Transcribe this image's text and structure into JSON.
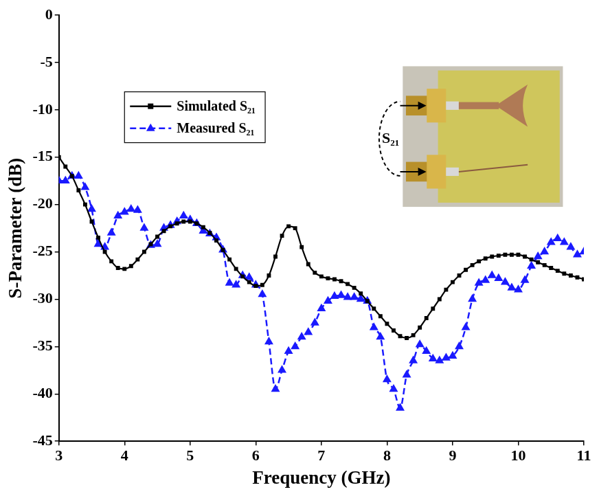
{
  "chart_data": {
    "type": "line",
    "x_label": "Frequency (GHz)",
    "y_label": "S-Parameter (dB)",
    "xlim": [
      3,
      11
    ],
    "xticks": [
      3,
      4,
      5,
      6,
      7,
      8,
      9,
      10,
      11
    ],
    "ylim": [
      -45,
      0
    ],
    "yticks": [
      -45,
      -40,
      -35,
      -30,
      -25,
      -20,
      -15,
      -10,
      -5,
      0
    ],
    "grid": false,
    "legend": "upper left",
    "annotations": [
      {
        "text": "S₂₁"
      }
    ],
    "x": [
      3.0,
      3.1,
      3.2,
      3.3,
      3.4,
      3.5,
      3.6,
      3.7,
      3.8,
      3.9,
      4.0,
      4.1,
      4.2,
      4.3,
      4.4,
      4.5,
      4.6,
      4.7,
      4.8,
      4.9,
      5.0,
      5.1,
      5.2,
      5.3,
      5.4,
      5.5,
      5.6,
      5.7,
      5.8,
      5.9,
      6.0,
      6.1,
      6.2,
      6.3,
      6.4,
      6.5,
      6.6,
      6.7,
      6.8,
      6.9,
      7.0,
      7.1,
      7.2,
      7.3,
      7.4,
      7.5,
      7.6,
      7.7,
      7.8,
      7.9,
      8.0,
      8.1,
      8.2,
      8.3,
      8.4,
      8.5,
      8.6,
      8.7,
      8.8,
      8.9,
      9.0,
      9.1,
      9.2,
      9.3,
      9.4,
      9.5,
      9.6,
      9.7,
      9.8,
      9.9,
      10.0,
      10.1,
      10.2,
      10.3,
      10.4,
      10.5,
      10.6,
      10.7,
      10.8,
      10.9,
      11.0
    ],
    "series": [
      {
        "name": "Simulated S₂₁",
        "color": "#000000",
        "marker": "square",
        "line_style": "solid",
        "values": [
          -15,
          -16,
          -17,
          -18.5,
          -20,
          -21.8,
          -23.5,
          -25,
          -26,
          -26.7,
          -26.8,
          -26.5,
          -25.8,
          -25,
          -24.2,
          -23.4,
          -22.8,
          -22.3,
          -22,
          -21.8,
          -21.8,
          -22,
          -22.4,
          -23,
          -23.8,
          -24.8,
          -25.8,
          -26.8,
          -27.6,
          -28.2,
          -28.6,
          -28.5,
          -27.5,
          -25.5,
          -23.3,
          -22.3,
          -22.5,
          -24.5,
          -26.3,
          -27.2,
          -27.6,
          -27.8,
          -27.9,
          -28.1,
          -28.4,
          -28.8,
          -29.4,
          -30.2,
          -31,
          -31.8,
          -32.6,
          -33.3,
          -33.9,
          -34.1,
          -33.8,
          -33,
          -32,
          -31,
          -30,
          -29,
          -28.2,
          -27.5,
          -26.9,
          -26.4,
          -26,
          -25.7,
          -25.5,
          -25.4,
          -25.3,
          -25.3,
          -25.3,
          -25.5,
          -25.8,
          -26.1,
          -26.4,
          -26.7,
          -27,
          -27.3,
          -27.5,
          -27.7,
          -27.9
        ]
      },
      {
        "name": "Measured S₂₁",
        "color": "#1a1aff",
        "marker": "triangle",
        "line_style": "dashed",
        "values": [
          -17.5,
          -17.5,
          -17,
          -17,
          -18.2,
          -20.5,
          -24.2,
          -24.5,
          -23,
          -21.2,
          -20.8,
          -20.5,
          -20.6,
          -22.5,
          -24.3,
          -24.2,
          -22.5,
          -22.2,
          -21.8,
          -21.2,
          -21.6,
          -22,
          -22.8,
          -23.1,
          -23.5,
          -24.8,
          -28.3,
          -28.5,
          -27.5,
          -27.7,
          -28.5,
          -29.5,
          -34.5,
          -39.5,
          -37.5,
          -35.5,
          -35,
          -34,
          -33.5,
          -32.5,
          -31,
          -30.2,
          -29.7,
          -29.6,
          -29.8,
          -29.8,
          -30,
          -30.2,
          -33,
          -34,
          -38.5,
          -39.5,
          -41.5,
          -38,
          -36.5,
          -34.8,
          -35.5,
          -36.3,
          -36.5,
          -36.2,
          -36,
          -35,
          -33,
          -30,
          -28.3,
          -28,
          -27.5,
          -27.8,
          -28.2,
          -28.8,
          -29,
          -28,
          -26.5,
          -25.5,
          -25,
          -24,
          -23.6,
          -24,
          -24.5,
          -25.3,
          -25
        ]
      }
    ]
  }
}
